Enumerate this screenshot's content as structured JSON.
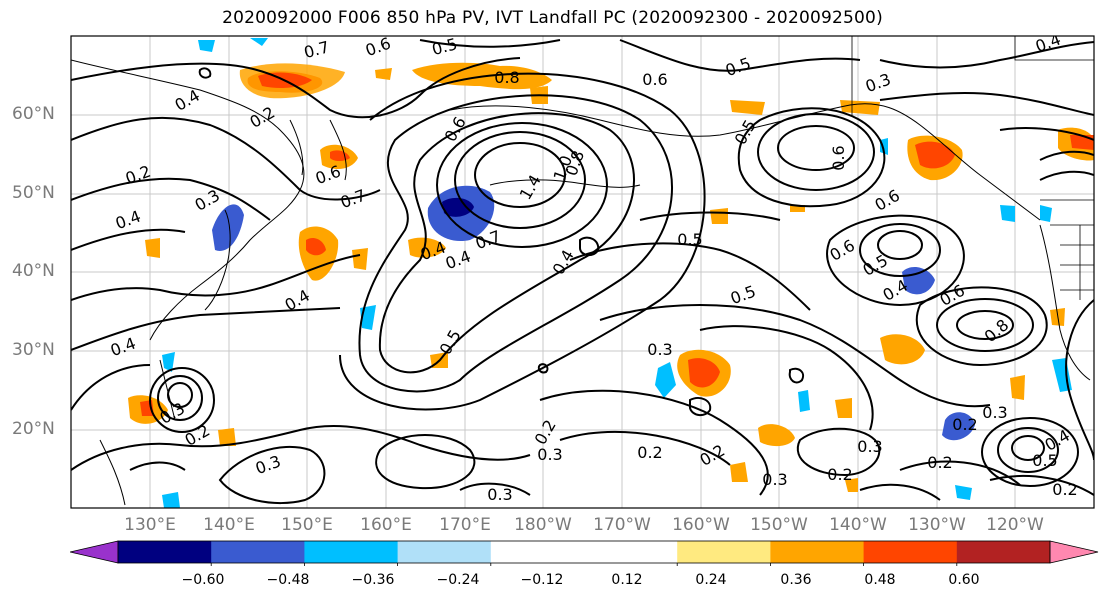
{
  "title": "2020092000 F006 850 hPa PV, IVT Landfall PC (2020092300 - 2020092500)",
  "lat_labels": [
    "60°N",
    "50°N",
    "40°N",
    "30°N",
    "20°N"
  ],
  "lon_labels": [
    "130°E",
    "140°E",
    "150°E",
    "160°E",
    "170°E",
    "180°W",
    "170°W",
    "160°W",
    "150°W",
    "140°W",
    "130°W",
    "120°W"
  ],
  "contour_labels": [
    "0.6",
    "0.5",
    "0.7",
    "0.8",
    "0.6",
    "0.5",
    "0.4",
    "0.3",
    "0.4",
    "0.2",
    "0.2",
    "0.3",
    "0.4",
    "0.6",
    "0.7",
    "0.4",
    "0.6",
    "0.8",
    "1.0",
    "1.4",
    "0.7",
    "0.4",
    "0.4",
    "0.5",
    "0.6",
    "0.5",
    "0.6",
    "0.6",
    "0.5",
    "0.5",
    "0.6",
    "0.8",
    "0.4",
    "0.4",
    "0.4",
    "0.5",
    "0.3",
    "0.3",
    "0.2",
    "0.3",
    "0.2",
    "0.3",
    "0.2",
    "0.2",
    "0.3",
    "0.2",
    "0.3",
    "0.2",
    "0.3",
    "0.2",
    "0.4",
    "0.5",
    "0.2",
    "0.3"
  ],
  "colorbar": {
    "colors": [
      "#9932cc",
      "#000080",
      "#3a5bd0",
      "#00bfff",
      "#b0e0f8",
      "#ffffff",
      "#ffffff",
      "#ffea80",
      "#ffa500",
      "#ff4500",
      "#b22222",
      "#ff88b0"
    ],
    "tick_labels": [
      "−0.60",
      "−0.48",
      "−0.36",
      "−0.24",
      "−0.12",
      "0.12",
      "0.24",
      "0.36",
      "0.48",
      "0.60"
    ]
  }
}
